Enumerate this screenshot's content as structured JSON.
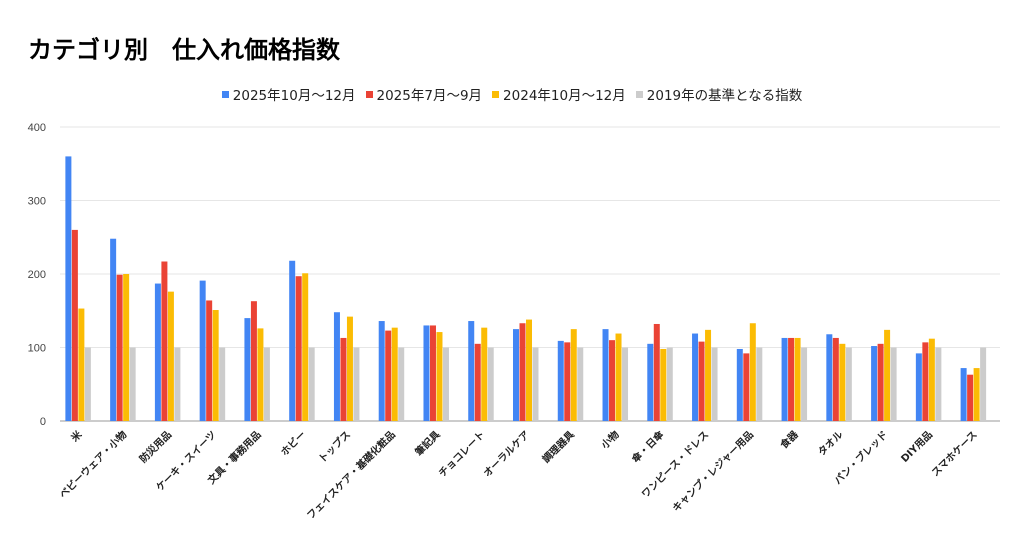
{
  "chart_data": {
    "type": "bar",
    "title": "カテゴリ別　仕入れ価格指数",
    "xlabel": "",
    "ylabel": "",
    "ylim": [
      0,
      400
    ],
    "yticks": [
      "0",
      "100",
      "200",
      "300",
      "400"
    ],
    "grid": true,
    "legend_position": "top",
    "categories": [
      "米",
      "ベビーウェア・小物",
      "防災用品",
      "ケーキ・スイーツ",
      "文具・事務用品",
      "ホビー",
      "トップス",
      "フェイスケア・基礎化粧品",
      "筆記具",
      "チョコレート",
      "オーラルケア",
      "調理器具",
      "小物",
      "傘・日傘",
      "ワンピース・ドレス",
      "キャンプ・レジャー用品",
      "食器",
      "タオル",
      "パン・ブレッド",
      "DIY用品",
      "スマホケース"
    ],
    "series": [
      {
        "name": "2025年10月～12月",
        "color": "#4285F4",
        "values": [
          360,
          248,
          187,
          191,
          140,
          218,
          148,
          136,
          130,
          136,
          125,
          109,
          125,
          105,
          119,
          98,
          113,
          118,
          102,
          92,
          72
        ]
      },
      {
        "name": "2025年7月～9月",
        "color": "#EA4335",
        "values": [
          260,
          199,
          217,
          164,
          163,
          197,
          113,
          123,
          130,
          105,
          133,
          107,
          110,
          132,
          108,
          92,
          113,
          113,
          105,
          107,
          63
        ]
      },
      {
        "name": "2024年10月～12月",
        "color": "#FBBC04",
        "values": [
          153,
          200,
          176,
          151,
          126,
          201,
          142,
          127,
          121,
          127,
          138,
          125,
          119,
          98,
          124,
          133,
          113,
          105,
          124,
          112,
          72
        ]
      },
      {
        "name": "2019年の基準となる指数",
        "color": "#CCCCCC",
        "values": [
          100,
          100,
          100,
          100,
          100,
          100,
          100,
          100,
          100,
          100,
          100,
          100,
          100,
          100,
          100,
          100,
          100,
          100,
          100,
          100,
          100
        ]
      }
    ]
  }
}
